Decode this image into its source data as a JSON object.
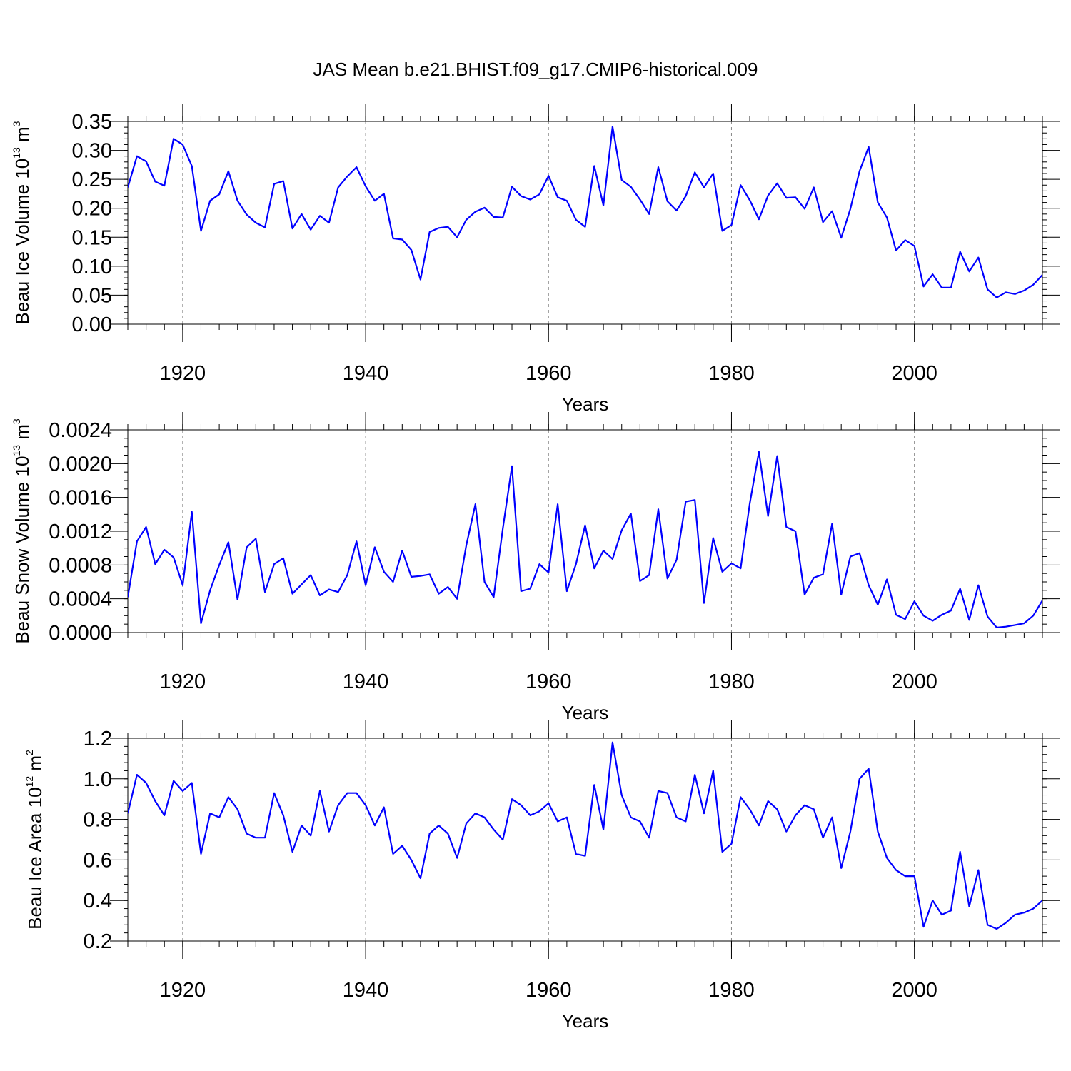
{
  "title": "JAS Mean b.e21.BHIST.f09_g17.CMIP6-historical.009",
  "chart_data": [
    {
      "type": "line",
      "ylabel": {
        "prefix": "Beau Ice Volume 10",
        "exp": "13",
        "unit": " m",
        "unit_exp": "3"
      },
      "xlabel": "Years",
      "x_start": 1914,
      "xlim": [
        1914,
        2014
      ],
      "ylim": [
        0,
        0.35
      ],
      "yticks": [
        0.0,
        0.05,
        0.1,
        0.15,
        0.2,
        0.25,
        0.3,
        0.35
      ],
      "ytick_labels": [
        "0.00",
        "0.05",
        "0.10",
        "0.15",
        "0.20",
        "0.25",
        "0.30",
        "0.35"
      ],
      "xticks": [
        1920,
        1940,
        1960,
        1980,
        2000
      ],
      "xtick_labels": [
        "1920",
        "1940",
        "1960",
        "1980",
        "2000"
      ],
      "minor_ystep": 0.01,
      "grid": "vertical-dashed",
      "color": "#0000ff",
      "values": [
        0.236,
        0.29,
        0.281,
        0.246,
        0.239,
        0.32,
        0.31,
        0.273,
        0.161,
        0.213,
        0.224,
        0.264,
        0.213,
        0.189,
        0.175,
        0.167,
        0.242,
        0.247,
        0.165,
        0.19,
        0.163,
        0.187,
        0.175,
        0.236,
        0.255,
        0.271,
        0.238,
        0.213,
        0.225,
        0.148,
        0.146,
        0.128,
        0.077,
        0.159,
        0.166,
        0.168,
        0.15,
        0.18,
        0.194,
        0.201,
        0.185,
        0.184,
        0.237,
        0.221,
        0.215,
        0.224,
        0.256,
        0.219,
        0.213,
        0.18,
        0.168,
        0.273,
        0.205,
        0.341,
        0.249,
        0.237,
        0.215,
        0.19,
        0.271,
        0.212,
        0.196,
        0.221,
        0.262,
        0.236,
        0.26,
        0.161,
        0.171,
        0.24,
        0.214,
        0.181,
        0.222,
        0.243,
        0.218,
        0.219,
        0.199,
        0.236,
        0.176,
        0.195,
        0.149,
        0.199,
        0.264,
        0.306,
        0.21,
        0.184,
        0.127,
        0.145,
        0.135,
        0.065,
        0.086,
        0.063,
        0.063,
        0.125,
        0.091,
        0.115,
        0.06,
        0.046,
        0.055,
        0.052,
        0.058,
        0.068,
        0.085
      ]
    },
    {
      "type": "line",
      "ylabel": {
        "prefix": "Beau Snow Volume 10",
        "exp": "13",
        "unit": " m",
        "unit_exp": "3"
      },
      "xlabel": "Years",
      "x_start": 1914,
      "xlim": [
        1914,
        2014
      ],
      "ylim": [
        0,
        0.0024
      ],
      "yticks": [
        0.0,
        0.0004,
        0.0008,
        0.0012,
        0.0016,
        0.002,
        0.0024
      ],
      "ytick_labels": [
        "0.0000",
        "0.0004",
        "0.0008",
        "0.0012",
        "0.0016",
        "0.0020",
        "0.0024"
      ],
      "xticks": [
        1920,
        1940,
        1960,
        1980,
        2000
      ],
      "xtick_labels": [
        "1920",
        "1940",
        "1960",
        "1980",
        "2000"
      ],
      "minor_ystep": 0.0001,
      "grid": "vertical-dashed",
      "color": "#0000ff",
      "values": [
        0.00042,
        0.00108,
        0.00125,
        0.00081,
        0.00098,
        0.00089,
        0.00056,
        0.00143,
        0.00011,
        0.0005,
        0.0008,
        0.00107,
        0.00039,
        0.00101,
        0.00111,
        0.00048,
        0.00081,
        0.00088,
        0.00046,
        0.00057,
        0.00068,
        0.00044,
        0.00051,
        0.00048,
        0.00068,
        0.00108,
        0.00056,
        0.00101,
        0.00072,
        0.0006,
        0.00097,
        0.00066,
        0.00067,
        0.00069,
        0.00046,
        0.00054,
        0.0004,
        0.00103,
        0.00152,
        0.0006,
        0.00042,
        0.00123,
        0.00197,
        0.00049,
        0.00052,
        0.00081,
        0.00071,
        0.00152,
        0.00049,
        0.00081,
        0.00127,
        0.00076,
        0.00097,
        0.00087,
        0.00121,
        0.00141,
        0.00061,
        0.00068,
        0.00146,
        0.00064,
        0.00086,
        0.00155,
        0.00157,
        0.00035,
        0.00112,
        0.00072,
        0.00082,
        0.00076,
        0.00153,
        0.00214,
        0.00138,
        0.00209,
        0.00125,
        0.0012,
        0.00045,
        0.00065,
        0.00069,
        0.00129,
        0.00045,
        0.0009,
        0.00094,
        0.00056,
        0.00033,
        0.00063,
        0.00021,
        0.00016,
        0.00037,
        0.0002,
        0.00014,
        0.00021,
        0.00026,
        0.00052,
        0.00015,
        0.00056,
        0.00019,
        6e-05,
        7e-05,
        9e-05,
        0.00011,
        0.0002,
        0.00038
      ]
    },
    {
      "type": "line",
      "ylabel": {
        "prefix": "Beau Ice Area 10",
        "exp": "12",
        "unit": " m",
        "unit_exp": "2"
      },
      "xlabel": "Years",
      "x_start": 1914,
      "xlim": [
        1914,
        2014
      ],
      "ylim": [
        0.2,
        1.2
      ],
      "yticks": [
        0.2,
        0.4,
        0.6,
        0.8,
        1.0,
        1.2
      ],
      "ytick_labels": [
        "0.2",
        "0.4",
        "0.6",
        "0.8",
        "1.0",
        "1.2"
      ],
      "xticks": [
        1920,
        1940,
        1960,
        1980,
        2000
      ],
      "xtick_labels": [
        "1920",
        "1940",
        "1960",
        "1980",
        "2000"
      ],
      "minor_ystep": 0.04,
      "grid": "vertical-dashed",
      "color": "#0000ff",
      "values": [
        0.83,
        1.02,
        0.98,
        0.89,
        0.82,
        0.99,
        0.94,
        0.98,
        0.63,
        0.83,
        0.81,
        0.91,
        0.85,
        0.73,
        0.71,
        0.71,
        0.93,
        0.82,
        0.64,
        0.77,
        0.72,
        0.94,
        0.74,
        0.87,
        0.93,
        0.93,
        0.87,
        0.77,
        0.86,
        0.63,
        0.67,
        0.6,
        0.51,
        0.73,
        0.77,
        0.73,
        0.61,
        0.78,
        0.83,
        0.81,
        0.75,
        0.7,
        0.9,
        0.87,
        0.82,
        0.84,
        0.88,
        0.79,
        0.81,
        0.63,
        0.62,
        0.97,
        0.75,
        1.18,
        0.92,
        0.81,
        0.79,
        0.71,
        0.94,
        0.93,
        0.81,
        0.79,
        1.02,
        0.83,
        1.04,
        0.64,
        0.68,
        0.91,
        0.85,
        0.77,
        0.89,
        0.85,
        0.74,
        0.82,
        0.87,
        0.85,
        0.71,
        0.81,
        0.56,
        0.74,
        1.0,
        1.05,
        0.74,
        0.61,
        0.55,
        0.52,
        0.52,
        0.27,
        0.4,
        0.33,
        0.35,
        0.64,
        0.37,
        0.55,
        0.28,
        0.26,
        0.29,
        0.33,
        0.34,
        0.36,
        0.4
      ]
    }
  ]
}
